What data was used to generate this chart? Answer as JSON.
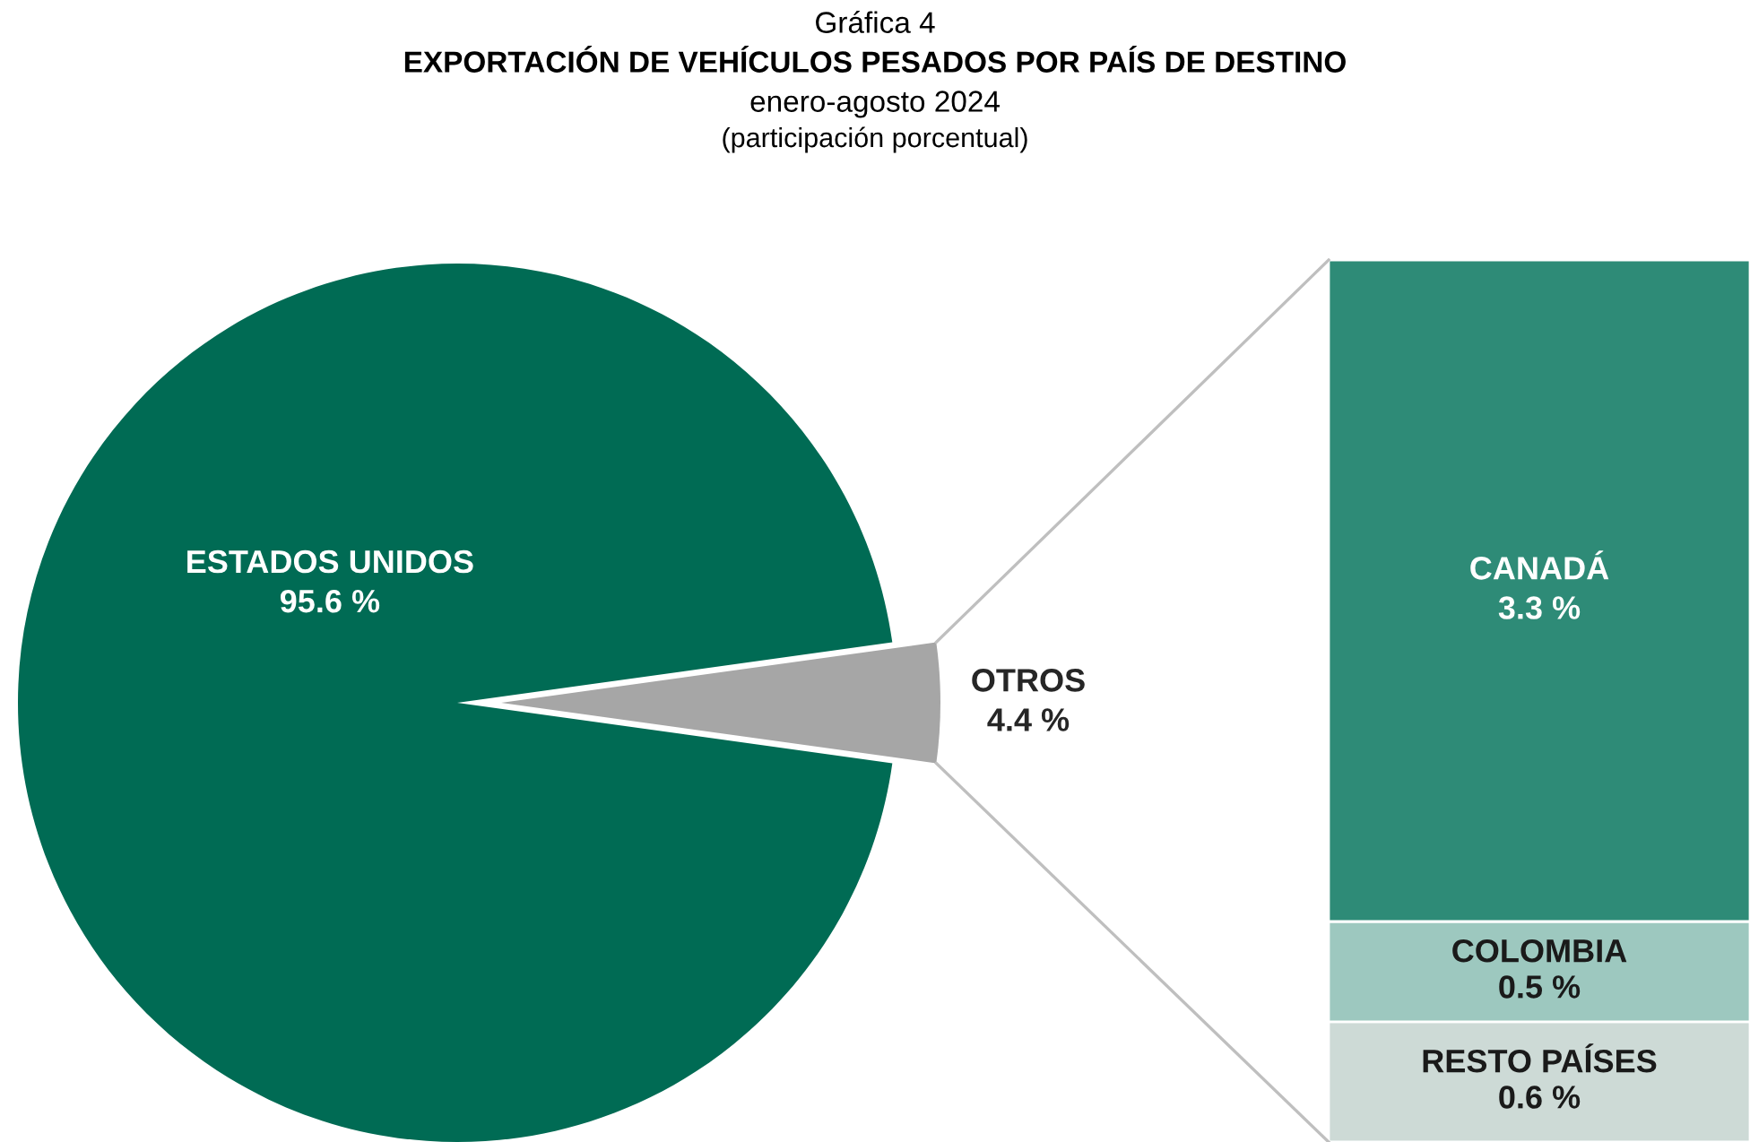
{
  "chart_data": [
    {
      "type": "pie",
      "title": "Gráfica 4\nEXPORTACIÓN DE VEHÍCULOS PESADOS POR PAÍS DE DESTINO",
      "subtitle": "enero-agosto 2024",
      "annotations": [
        "(participación porcentual)"
      ],
      "categories": [
        "ESTADOS UNIDOS",
        "OTROS"
      ],
      "values": [
        95.6,
        4.4
      ],
      "colors": [
        "#006b54",
        "#a6a6a6"
      ],
      "value_labels": [
        "95.6 %",
        "4.4 %"
      ],
      "legend": false
    },
    {
      "type": "bar",
      "stacked": true,
      "categories": [
        null
      ],
      "legend": false,
      "series": [
        {
          "name": "RESTO PAÍSES",
          "color": "#cddad6",
          "values": [
            0.6
          ],
          "value_labels": [
            "0.6 %"
          ]
        },
        {
          "name": "COLOMBIA",
          "color": "#9dc8bf",
          "values": [
            0.5
          ],
          "value_labels": [
            "0.5 %"
          ]
        },
        {
          "name": "CANADÁ",
          "color": "#2e8b77",
          "values": [
            3.3
          ],
          "value_labels": [
            "3.3 %"
          ]
        }
      ]
    }
  ]
}
